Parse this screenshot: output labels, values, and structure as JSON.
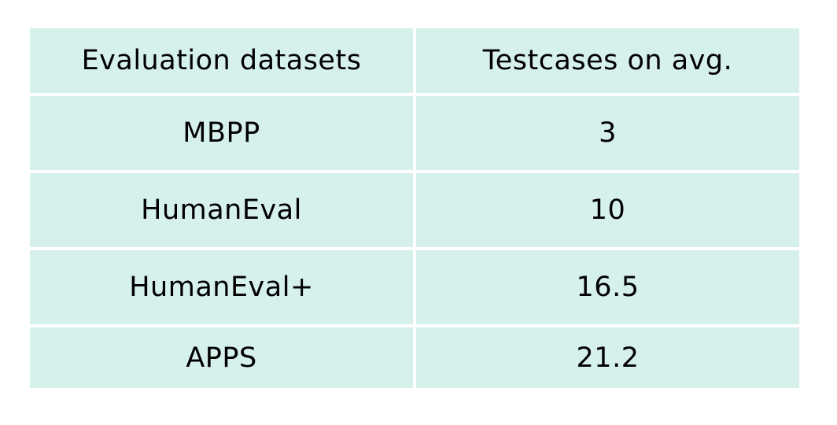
{
  "table": {
    "header": [
      "Evaluation datasets",
      "Testcases on avg."
    ],
    "rows": [
      [
        "MBPP",
        "3"
      ],
      [
        "HumanEval",
        "10"
      ],
      [
        "HumanEval+",
        "16.5"
      ],
      [
        "APPS",
        "21.2"
      ]
    ]
  }
}
